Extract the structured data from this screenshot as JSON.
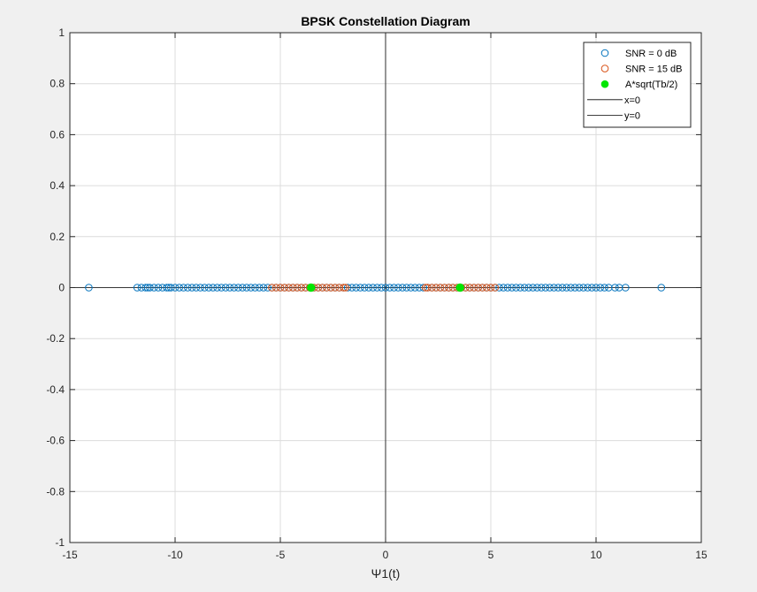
{
  "chart_data": {
    "type": "scatter",
    "title": "BPSK Constellation Diagram",
    "xlabel": "Ψ1(t)",
    "ylabel": "",
    "xlim": [
      -15,
      15
    ],
    "ylim": [
      -1,
      1
    ],
    "xticks": [
      -15,
      -10,
      -5,
      0,
      5,
      10,
      15
    ],
    "yticks": [
      -1,
      -0.8,
      -0.6,
      -0.4,
      -0.2,
      0,
      0.2,
      0.4,
      0.6,
      0.8,
      1
    ],
    "xtick_labels": [
      "-15",
      "-10",
      "-5",
      "0",
      "5",
      "10",
      "15"
    ],
    "ytick_labels": [
      "-1",
      "-0.8",
      "-0.6",
      "-0.4",
      "-0.2",
      "0",
      "0.2",
      "0.4",
      "0.6",
      "0.8",
      "1"
    ],
    "grid": true,
    "legend_position": "top-right",
    "series": [
      {
        "name": "SNR = 0 dB",
        "marker": "open-circle",
        "color": "#0072bd",
        "points_y": 0,
        "x": [
          -14.1,
          -11.8,
          -11.6,
          -11.4,
          -11.3,
          -11.2,
          -11.0,
          -10.8,
          -10.6,
          -10.4,
          -10.3,
          -10.2,
          -10.0,
          -9.8,
          -9.6,
          -9.4,
          -9.2,
          -9.0,
          -8.8,
          -8.6,
          -8.4,
          -8.2,
          -8.0,
          -7.8,
          -7.6,
          -7.4,
          -7.2,
          -7.0,
          -6.8,
          -6.6,
          -6.4,
          -6.2,
          -6.0,
          -5.8,
          -5.6,
          -5.4,
          -5.2,
          -5.0,
          -4.8,
          -4.6,
          -4.4,
          -4.2,
          -4.0,
          -3.8,
          -3.6,
          -3.4,
          -3.2,
          -3.0,
          -2.8,
          -2.6,
          -2.4,
          -2.2,
          -2.0,
          -1.8,
          -1.6,
          -1.4,
          -1.2,
          -1.0,
          -0.8,
          -0.6,
          -0.4,
          -0.2,
          0.0,
          0.2,
          0.4,
          0.6,
          0.8,
          1.0,
          1.2,
          1.4,
          1.6,
          1.8,
          2.0,
          2.2,
          2.4,
          2.6,
          2.8,
          3.0,
          3.2,
          3.4,
          3.6,
          3.8,
          4.0,
          4.2,
          4.4,
          4.6,
          4.8,
          5.0,
          5.2,
          5.4,
          5.6,
          5.8,
          6.0,
          6.2,
          6.4,
          6.6,
          6.8,
          7.0,
          7.2,
          7.4,
          7.6,
          7.8,
          8.0,
          8.2,
          8.4,
          8.6,
          8.8,
          9.0,
          9.2,
          9.4,
          9.6,
          9.8,
          10.0,
          10.2,
          10.4,
          10.6,
          10.9,
          11.1,
          11.4,
          13.1
        ]
      },
      {
        "name": "SNR = 15 dB",
        "marker": "open-circle",
        "color": "#d95319",
        "points_y": 0,
        "x": [
          -5.4,
          -5.2,
          -5.0,
          -4.8,
          -4.6,
          -4.4,
          -4.2,
          -4.0,
          -3.8,
          -3.6,
          -3.4,
          -3.2,
          -3.0,
          -2.8,
          -2.6,
          -2.4,
          -2.2,
          -2.0,
          -1.9,
          1.9,
          2.0,
          2.2,
          2.4,
          2.6,
          2.8,
          3.0,
          3.2,
          3.4,
          3.6,
          3.8,
          4.0,
          4.2,
          4.4,
          4.6,
          4.8,
          5.0,
          5.2
        ]
      },
      {
        "name": "A*sqrt(Tb/2)",
        "marker": "filled-circle",
        "color": "#00e600",
        "points_y": 0,
        "x": [
          -3.54,
          3.54
        ]
      },
      {
        "name": "x=0",
        "marker": "line",
        "color": "#000000",
        "x": [
          0,
          0
        ],
        "y": [
          -1,
          1
        ]
      },
      {
        "name": "y=0",
        "marker": "line",
        "color": "#000000",
        "x": [
          -15,
          15
        ],
        "y": [
          0,
          0
        ]
      }
    ]
  }
}
